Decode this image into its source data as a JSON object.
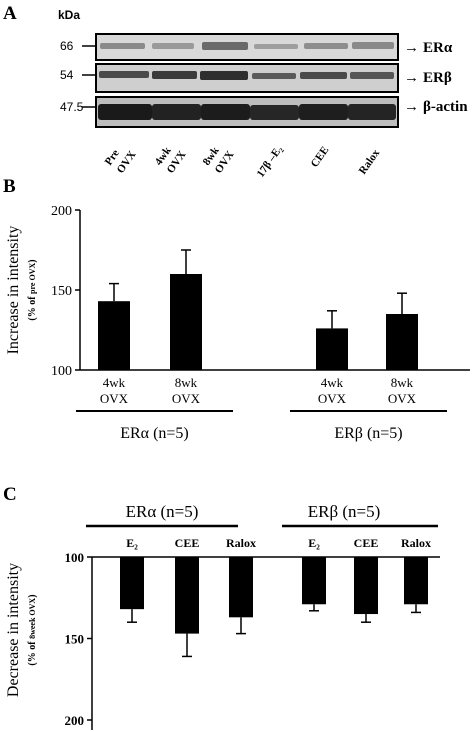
{
  "panel_a": {
    "letter": "A",
    "kda_label": "kDa",
    "bands": [
      {
        "mw": "66",
        "label": "ERα"
      },
      {
        "mw": "54",
        "label": "ERβ"
      },
      {
        "mw": "47.5",
        "label": "β-actin"
      }
    ],
    "lanes": [
      {
        "line1": "Pre",
        "line2": "OVX"
      },
      {
        "line1": "4wk",
        "line2": "OVX"
      },
      {
        "line1": "8wk",
        "line2": "OVX"
      },
      {
        "line1": "17β –E₂",
        "line2": ""
      },
      {
        "line1": "CEE",
        "line2": ""
      },
      {
        "line1": "Ralox",
        "line2": ""
      }
    ],
    "arrow": "→"
  },
  "chart_data": [
    {
      "type": "bar",
      "panel": "B",
      "ylabel": "Increase in intensity",
      "ylabel_sub_prefix": "(% of ",
      "ylabel_sub_small": "pre OVX",
      "ylabel_sub_suffix": ")",
      "ylim": [
        100,
        200
      ],
      "yticks": [
        "100",
        "150",
        "200"
      ],
      "groups": [
        {
          "label": "ERα (n=5)",
          "bars": [
            {
              "line1": "4wk",
              "line2": "OVX",
              "value": 143,
              "error": 11
            },
            {
              "line1": "8wk",
              "line2": "OVX",
              "value": 160,
              "error": 15
            }
          ]
        },
        {
          "label": "ERβ (n=5)",
          "bars": [
            {
              "line1": "4wk",
              "line2": "OVX",
              "value": 126,
              "error": 11
            },
            {
              "line1": "8wk",
              "line2": "OVX",
              "value": 135,
              "error": 13
            }
          ]
        }
      ],
      "bar_color": "#000000"
    },
    {
      "type": "bar",
      "panel": "C",
      "ylabel": "Decrease in intensity",
      "ylabel_sub_prefix": "(% of ",
      "ylabel_sub_small": "8week OVX",
      "ylabel_sub_suffix": ")",
      "ylim": [
        100,
        200
      ],
      "y_inverted": true,
      "yticks": [
        "100",
        "150",
        "200"
      ],
      "groups": [
        {
          "label": "ERα (n=5)",
          "bars": [
            {
              "label": "E₂",
              "value": 132,
              "error": 8
            },
            {
              "label": "CEE",
              "value": 147,
              "error": 14
            },
            {
              "label": "Ralox",
              "value": 137,
              "error": 10
            }
          ]
        },
        {
          "label": "ERβ (n=5)",
          "bars": [
            {
              "label": "E₂",
              "value": 129,
              "error": 4
            },
            {
              "label": "CEE",
              "value": 135,
              "error": 5
            },
            {
              "label": "Ralox",
              "value": 129,
              "error": 5
            }
          ]
        }
      ],
      "bar_color": "#000000"
    }
  ]
}
